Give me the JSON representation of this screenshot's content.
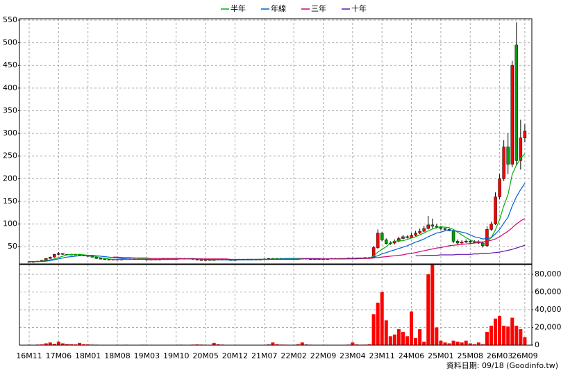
{
  "chart_data": [
    {
      "type": "candlestick",
      "ylim": [
        12,
        553
      ],
      "yticks": [
        50,
        100,
        150,
        200,
        250,
        300,
        350,
        400,
        450,
        500,
        550
      ],
      "grid": true,
      "legend": "top",
      "up_color": "#ff0000",
      "down_color": "#00a000",
      "open": [
        16,
        17,
        17,
        18,
        20,
        24,
        27,
        33,
        35,
        33,
        32,
        33,
        33,
        31,
        30,
        29,
        27,
        24,
        23,
        22,
        22,
        22,
        22,
        22,
        23,
        23,
        23,
        23,
        22,
        22,
        22,
        22,
        22,
        23,
        23,
        23,
        23,
        24,
        24,
        24,
        22,
        21,
        20,
        21,
        21,
        21,
        22,
        22,
        21,
        21,
        21,
        22,
        22,
        22,
        22,
        22,
        22,
        23,
        24,
        24,
        24,
        24,
        24,
        24,
        24,
        24,
        24,
        23,
        23,
        23,
        23,
        23,
        23,
        24,
        24,
        24,
        24,
        25,
        25,
        25,
        25,
        26,
        26,
        48,
        80,
        65,
        57,
        58,
        62,
        68,
        72,
        70,
        75,
        80,
        84,
        90,
        98,
        95,
        93,
        90,
        88,
        85,
        62,
        58,
        60,
        62,
        60,
        61,
        58,
        52,
        88,
        100,
        160,
        200,
        270,
        232,
        495,
        240,
        290
      ],
      "high": [
        18,
        18,
        19,
        21,
        25,
        28,
        34,
        38,
        36,
        34,
        34,
        34,
        34,
        32,
        31,
        30,
        28,
        25,
        24,
        23,
        23,
        23,
        23,
        24,
        24,
        24,
        24,
        24,
        23,
        23,
        23,
        23,
        24,
        24,
        24,
        24,
        25,
        25,
        25,
        25,
        23,
        22,
        22,
        22,
        22,
        23,
        23,
        23,
        22,
        22,
        23,
        23,
        23,
        23,
        23,
        23,
        24,
        25,
        25,
        25,
        25,
        25,
        25,
        25,
        25,
        25,
        25,
        24,
        24,
        24,
        24,
        24,
        25,
        25,
        25,
        25,
        26,
        26,
        26,
        26,
        27,
        27,
        52,
        88,
        82,
        68,
        62,
        66,
        72,
        76,
        75,
        80,
        85,
        90,
        96,
        118,
        112,
        100,
        96,
        92,
        90,
        88,
        66,
        64,
        66,
        66,
        64,
        64,
        62,
        95,
        105,
        170,
        210,
        285,
        300,
        460,
        545,
        330,
        320
      ],
      "low": [
        15,
        16,
        16,
        17,
        19,
        23,
        26,
        31,
        32,
        31,
        31,
        32,
        30,
        29,
        28,
        26,
        23,
        22,
        21,
        21,
        21,
        21,
        21,
        21,
        22,
        22,
        22,
        21,
        21,
        21,
        21,
        21,
        21,
        22,
        22,
        22,
        22,
        23,
        23,
        21,
        20,
        19,
        19,
        20,
        20,
        20,
        21,
        20,
        20,
        20,
        20,
        21,
        21,
        21,
        21,
        21,
        21,
        22,
        23,
        23,
        23,
        23,
        23,
        23,
        23,
        23,
        22,
        22,
        22,
        22,
        22,
        22,
        22,
        23,
        23,
        23,
        23,
        24,
        24,
        24,
        24,
        25,
        25,
        45,
        62,
        55,
        54,
        55,
        60,
        66,
        68,
        68,
        73,
        78,
        82,
        88,
        90,
        90,
        86,
        85,
        84,
        58,
        55,
        56,
        58,
        57,
        58,
        56,
        48,
        50,
        85,
        98,
        155,
        195,
        210,
        225,
        230,
        220,
        280
      ],
      "close": [
        17,
        17,
        18,
        20,
        24,
        27,
        33,
        35,
        33,
        32,
        33,
        33,
        31,
        30,
        29,
        27,
        24,
        23,
        22,
        22,
        22,
        22,
        22,
        23,
        23,
        23,
        23,
        22,
        22,
        22,
        22,
        22,
        23,
        23,
        23,
        23,
        24,
        24,
        24,
        22,
        21,
        20,
        21,
        21,
        21,
        22,
        22,
        21,
        21,
        21,
        22,
        22,
        22,
        22,
        22,
        22,
        23,
        24,
        24,
        24,
        24,
        24,
        24,
        24,
        24,
        24,
        23,
        23,
        23,
        23,
        23,
        23,
        24,
        24,
        24,
        24,
        25,
        25,
        25,
        25,
        26,
        26,
        48,
        80,
        65,
        57,
        58,
        62,
        68,
        72,
        70,
        75,
        80,
        84,
        90,
        98,
        95,
        93,
        90,
        88,
        85,
        62,
        58,
        60,
        62,
        60,
        61,
        58,
        52,
        88,
        100,
        160,
        200,
        270,
        232,
        450,
        240,
        290,
        305
      ],
      "series": [
        {
          "name": "半年",
          "color": "#00b000",
          "values": [
            17,
            17,
            17,
            18,
            19,
            21,
            23,
            26,
            29,
            32,
            33,
            33,
            33,
            32,
            31,
            30,
            28,
            26,
            24,
            23,
            22,
            22,
            22,
            22,
            22,
            22,
            23,
            23,
            23,
            22,
            22,
            22,
            22,
            22,
            23,
            23,
            23,
            23,
            24,
            24,
            23,
            22,
            22,
            21,
            21,
            21,
            21,
            21,
            21,
            21,
            21,
            21,
            22,
            22,
            22,
            22,
            22,
            22,
            23,
            23,
            23,
            24,
            24,
            24,
            24,
            24,
            24,
            24,
            23,
            23,
            23,
            23,
            23,
            23,
            24,
            24,
            24,
            24,
            25,
            25,
            25,
            25,
            29,
            38,
            44,
            50,
            58,
            62,
            63,
            63,
            66,
            69,
            72,
            76,
            80,
            85,
            89,
            92,
            94,
            93,
            92,
            88,
            82,
            76,
            70,
            65,
            61,
            61,
            60,
            62,
            70,
            87,
            110,
            140,
            165,
            210,
            230,
            245,
            255
          ]
        },
        {
          "name": "年線",
          "color": "#0060d0",
          "values": [
            17,
            17,
            17,
            17,
            18,
            19,
            21,
            23,
            25,
            27,
            28,
            29,
            30,
            31,
            31,
            31,
            30,
            29,
            28,
            27,
            26,
            25,
            24,
            23,
            23,
            22,
            22,
            22,
            22,
            22,
            22,
            22,
            22,
            22,
            22,
            22,
            23,
            23,
            23,
            23,
            23,
            23,
            22,
            22,
            22,
            22,
            21,
            21,
            21,
            21,
            21,
            21,
            21,
            21,
            22,
            22,
            22,
            22,
            22,
            22,
            23,
            23,
            23,
            23,
            23,
            23,
            24,
            24,
            24,
            24,
            23,
            23,
            23,
            23,
            23,
            23,
            24,
            24,
            24,
            24,
            24,
            25,
            27,
            30,
            34,
            37,
            40,
            43,
            46,
            49,
            52,
            56,
            60,
            63,
            67,
            72,
            76,
            80,
            82,
            85,
            86,
            85,
            84,
            82,
            80,
            76,
            72,
            70,
            67,
            68,
            70,
            78,
            88,
            102,
            115,
            140,
            160,
            176,
            190
          ]
        },
        {
          "name": "三年",
          "color": "#d00070",
          "values": [
            null,
            null,
            null,
            null,
            null,
            null,
            null,
            null,
            null,
            null,
            null,
            null,
            null,
            null,
            null,
            null,
            null,
            null,
            null,
            null,
            27,
            27,
            26,
            26,
            26,
            25,
            25,
            25,
            25,
            24,
            24,
            24,
            24,
            24,
            24,
            24,
            24,
            23,
            23,
            23,
            23,
            23,
            23,
            23,
            23,
            23,
            23,
            23,
            22,
            22,
            22,
            22,
            22,
            22,
            22,
            22,
            22,
            22,
            22,
            22,
            22,
            22,
            22,
            22,
            22,
            23,
            23,
            23,
            23,
            23,
            23,
            23,
            23,
            23,
            23,
            23,
            23,
            23,
            23,
            24,
            24,
            24,
            25,
            26,
            27,
            28,
            29,
            30,
            31,
            32,
            34,
            35,
            37,
            39,
            41,
            43,
            45,
            47,
            48,
            50,
            52,
            53,
            54,
            55,
            56,
            57,
            58,
            59,
            60,
            62,
            64,
            67,
            72,
            78,
            84,
            92,
            100,
            107,
            112
          ]
        },
        {
          "name": "十年",
          "color": "#6010b0",
          "values": [
            null,
            null,
            null,
            null,
            null,
            null,
            null,
            null,
            null,
            null,
            null,
            null,
            null,
            null,
            null,
            null,
            null,
            null,
            null,
            null,
            null,
            null,
            null,
            null,
            null,
            null,
            null,
            null,
            null,
            null,
            null,
            null,
            null,
            null,
            null,
            null,
            null,
            null,
            null,
            null,
            null,
            null,
            null,
            null,
            null,
            null,
            null,
            null,
            null,
            null,
            null,
            null,
            null,
            null,
            null,
            null,
            null,
            null,
            null,
            null,
            null,
            null,
            null,
            null,
            null,
            null,
            null,
            null,
            null,
            null,
            null,
            null,
            null,
            null,
            null,
            null,
            null,
            null,
            null,
            null,
            null,
            null,
            null,
            null,
            null,
            null,
            null,
            null,
            null,
            null,
            null,
            null,
            30,
            30,
            31,
            31,
            31,
            31,
            32,
            32,
            32,
            32,
            33,
            33,
            33,
            33,
            34,
            34,
            35,
            35,
            36,
            37,
            38,
            40,
            42,
            44,
            47,
            50,
            53
          ]
        }
      ]
    },
    {
      "type": "bar",
      "color": "#ff0000",
      "categories": [
        "16M11",
        null,
        null,
        null,
        null,
        null,
        null,
        "17M06",
        null,
        null,
        null,
        null,
        null,
        null,
        "18M01",
        null,
        null,
        null,
        null,
        null,
        null,
        "18M08",
        null,
        null,
        null,
        null,
        null,
        null,
        "19M03",
        null,
        null,
        null,
        null,
        null,
        null,
        "19M10",
        null,
        null,
        null,
        null,
        null,
        null,
        "20M05",
        null,
        null,
        null,
        null,
        null,
        null,
        "20M12",
        null,
        null,
        null,
        null,
        null,
        null,
        "21M07",
        null,
        null,
        null,
        null,
        null,
        null,
        "22M02",
        null,
        null,
        null,
        null,
        null,
        null,
        "22M09",
        null,
        null,
        null,
        null,
        null,
        null,
        "23M04",
        null,
        null,
        null,
        null,
        null,
        null,
        "23M11",
        null,
        null,
        null,
        null,
        null,
        null,
        "24M06",
        null,
        null,
        null,
        null,
        null,
        null,
        "25M01",
        null,
        null,
        null,
        null,
        null,
        null,
        "25M08",
        null,
        null,
        null,
        null,
        null,
        null,
        "26M03",
        null,
        null,
        null,
        null,
        null,
        "26M09"
      ],
      "values": [
        500,
        400,
        600,
        800,
        2000,
        3000,
        1500,
        4000,
        2000,
        1200,
        1000,
        800,
        2500,
        1000,
        800,
        600,
        500,
        400,
        400,
        300,
        300,
        300,
        400,
        500,
        400,
        300,
        400,
        500,
        300,
        300,
        300,
        300,
        400,
        400,
        300,
        300,
        500,
        400,
        400,
        600,
        800,
        600,
        400,
        300,
        2500,
        1000,
        600,
        400,
        300,
        300,
        400,
        400,
        300,
        300,
        300,
        300,
        400,
        800,
        3000,
        1000,
        600,
        500,
        400,
        300,
        1000,
        3000,
        800,
        500,
        400,
        300,
        300,
        300,
        400,
        300,
        300,
        400,
        600,
        3000,
        800,
        500,
        600,
        1000,
        35000,
        48000,
        60000,
        28000,
        10000,
        12000,
        18000,
        15000,
        10000,
        38000,
        8000,
        18000,
        4000,
        80000,
        91000,
        20000,
        5000,
        3000,
        2000,
        5000,
        4000,
        3000,
        5000,
        2000,
        1000,
        3000,
        1000,
        15000,
        22000,
        30000,
        33000,
        22000,
        21000,
        31000,
        22000,
        18000,
        9000
      ],
      "ylim": [
        0,
        91000
      ],
      "yticks": [
        0,
        {
          "value": 20000,
          "label": "20,000"
        },
        {
          "value": 40000,
          "label": "40,000"
        },
        {
          "value": 60000,
          "label": "60,000"
        },
        {
          "value": 80000,
          "label": "80,000"
        }
      ],
      "grid": true
    }
  ],
  "footer": "資料日期: 09/18 (Goodinfo.tw)"
}
